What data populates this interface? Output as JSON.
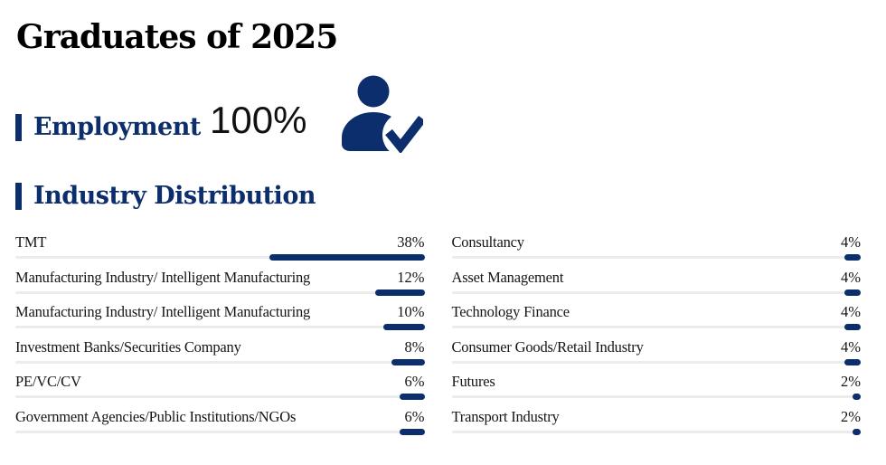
{
  "page_title": "Graduates of 2025",
  "employment": {
    "section_label": "Employment",
    "value": "100%",
    "icon": "person-check-icon"
  },
  "industry": {
    "section_label": "Industry Distribution",
    "columns": [
      {
        "rows": [
          {
            "label": "TMT",
            "pct": "38%",
            "value": 38
          },
          {
            "label": "Manufacturing Industry/ Intelligent Manufacturing",
            "pct": "12%",
            "value": 12
          },
          {
            "label": "Manufacturing Industry/ Intelligent Manufacturing",
            "pct": "10%",
            "value": 10
          },
          {
            "label": "Investment Banks/Securities Company",
            "pct": "8%",
            "value": 8
          },
          {
            "label": "PE/VC/CV",
            "pct": "6%",
            "value": 6
          },
          {
            "label": "Government Agencies/Public Institutions/NGOs",
            "pct": "6%",
            "value": 6
          }
        ]
      },
      {
        "rows": [
          {
            "label": "Consultancy",
            "pct": "4%",
            "value": 4
          },
          {
            "label": "Asset Management",
            "pct": "4%",
            "value": 4
          },
          {
            "label": "Technology Finance",
            "pct": "4%",
            "value": 4
          },
          {
            "label": "Consumer Goods/Retail Industry",
            "pct": "4%",
            "value": 4
          },
          {
            "label": "Futures",
            "pct": "2%",
            "value": 2
          },
          {
            "label": "Transport Industry",
            "pct": "2%",
            "value": 2
          }
        ]
      }
    ]
  },
  "colors": {
    "navy": "#0d2e6c",
    "track_gray": "#ececec",
    "text_dark": "#151515"
  },
  "chart_data": {
    "type": "bar",
    "title": "Industry Distribution",
    "subtitle": "Graduates of 2025 — Employment 100%",
    "orientation": "horizontal",
    "categories": [
      "TMT",
      "Manufacturing Industry/ Intelligent Manufacturing",
      "Manufacturing Industry/ Intelligent Manufacturing",
      "Investment Banks/Securities Company",
      "PE/VC/CV",
      "Government Agencies/Public Institutions/NGOs",
      "Consultancy",
      "Asset Management",
      "Technology Finance",
      "Consumer Goods/Retail Industry",
      "Futures",
      "Transport Industry"
    ],
    "values": [
      38,
      12,
      10,
      8,
      6,
      6,
      4,
      4,
      4,
      4,
      2,
      2
    ],
    "unit": "%",
    "xlabel": "",
    "ylabel": "",
    "xlim": [
      0,
      100
    ],
    "grid": false,
    "legend": false,
    "bar_color": "#0d2e6c",
    "track_color": "#ececec",
    "layout": "two columns of rows; fills right-aligned on full-width tracks; percent labels right-aligned above bars"
  }
}
